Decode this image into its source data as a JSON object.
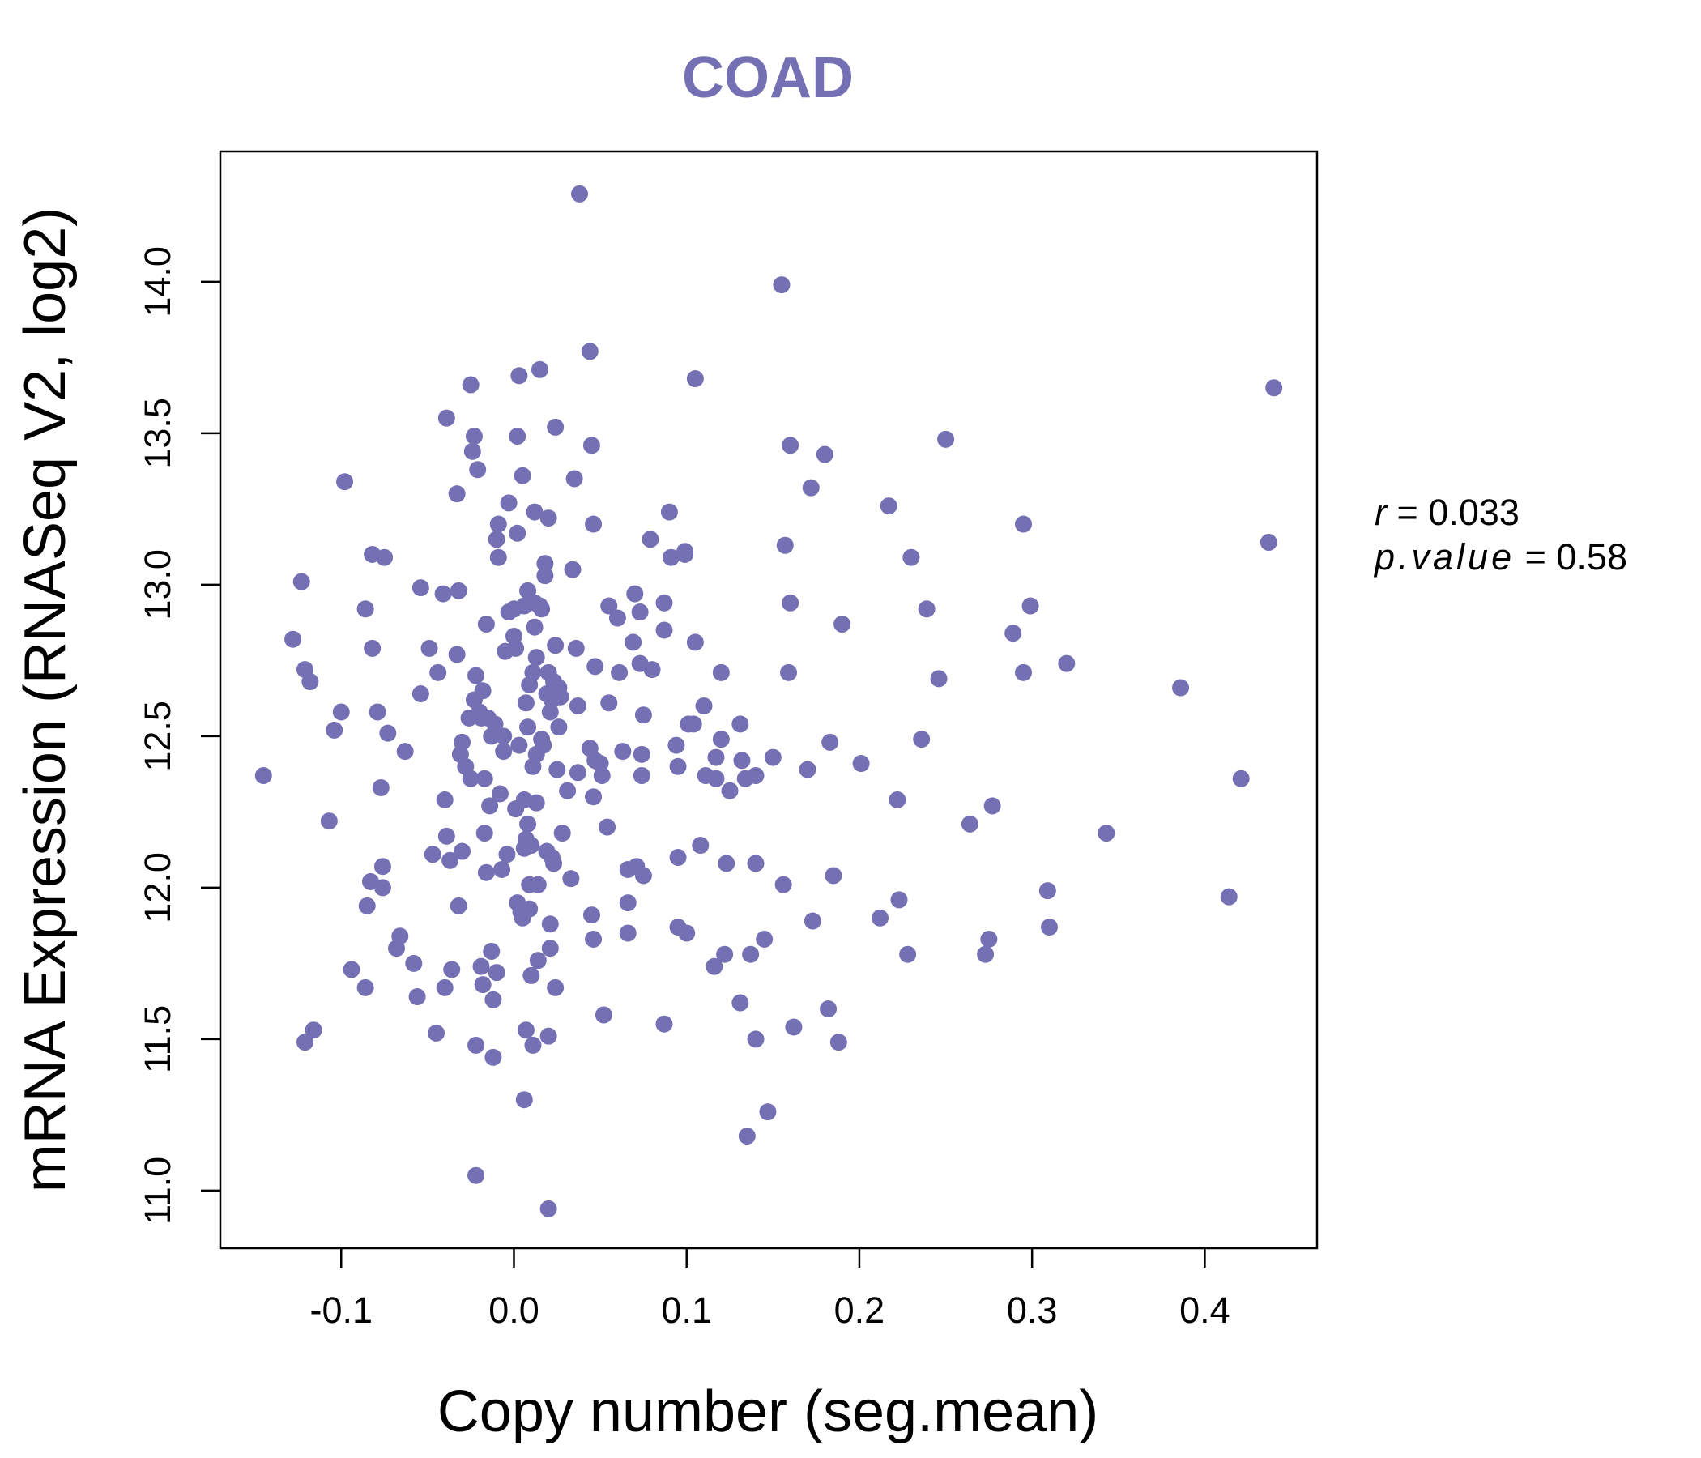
{
  "chart_data": {
    "type": "scatter",
    "title": "COAD",
    "xlabel": "Copy number (seg.mean)",
    "ylabel": "mRNA Expression (RNASeq V2, log2)",
    "xlim": [
      -0.17,
      0.465
    ],
    "ylim": [
      10.81,
      14.43
    ],
    "x_ticks": [
      "-0.1",
      "0.0",
      "0.1",
      "0.2",
      "0.3",
      "0.4"
    ],
    "y_ticks": [
      "11.0",
      "11.5",
      "12.0",
      "12.5",
      "13.0",
      "13.5",
      "14.0"
    ],
    "grid": false,
    "legend": "none",
    "point_color": "#7570B3",
    "stats": {
      "r_label": "r",
      "r_value": "0.033",
      "p_label": "p.value",
      "p_value": "0.58"
    },
    "points": [
      [
        -0.145,
        12.37
      ],
      [
        -0.128,
        12.82
      ],
      [
        -0.123,
        13.01
      ],
      [
        -0.121,
        12.72
      ],
      [
        -0.121,
        11.49
      ],
      [
        -0.118,
        12.68
      ],
      [
        -0.116,
        11.53
      ],
      [
        -0.107,
        12.22
      ],
      [
        -0.104,
        12.52
      ],
      [
        -0.1,
        12.58
      ],
      [
        -0.098,
        13.34
      ],
      [
        -0.094,
        11.73
      ],
      [
        -0.086,
        11.67
      ],
      [
        -0.086,
        12.92
      ],
      [
        -0.085,
        11.94
      ],
      [
        -0.083,
        12.02
      ],
      [
        -0.082,
        12.79
      ],
      [
        -0.082,
        13.1
      ],
      [
        -0.079,
        12.58
      ],
      [
        -0.077,
        12.33
      ],
      [
        -0.076,
        12.07
      ],
      [
        -0.076,
        12.0
      ],
      [
        -0.075,
        13.09
      ],
      [
        -0.073,
        12.51
      ],
      [
        -0.068,
        11.8
      ],
      [
        -0.066,
        11.84
      ],
      [
        -0.063,
        12.45
      ],
      [
        -0.058,
        11.75
      ],
      [
        -0.056,
        11.64
      ],
      [
        -0.054,
        12.64
      ],
      [
        -0.054,
        12.99
      ],
      [
        -0.049,
        12.79
      ],
      [
        -0.047,
        12.11
      ],
      [
        -0.045,
        11.52
      ],
      [
        -0.044,
        12.71
      ],
      [
        -0.041,
        12.97
      ],
      [
        -0.04,
        11.67
      ],
      [
        -0.04,
        12.29
      ],
      [
        -0.039,
        12.17
      ],
      [
        -0.039,
        13.55
      ],
      [
        -0.037,
        12.09
      ],
      [
        -0.036,
        11.73
      ],
      [
        -0.033,
        13.3
      ],
      [
        -0.033,
        12.77
      ],
      [
        -0.032,
        12.98
      ],
      [
        -0.032,
        11.94
      ],
      [
        -0.031,
        12.44
      ],
      [
        -0.03,
        12.48
      ],
      [
        -0.03,
        12.12
      ],
      [
        -0.028,
        12.4
      ],
      [
        -0.026,
        12.56
      ],
      [
        -0.025,
        12.36
      ],
      [
        -0.025,
        13.66
      ],
      [
        -0.024,
        13.44
      ],
      [
        -0.023,
        13.49
      ],
      [
        -0.023,
        12.62
      ],
      [
        -0.022,
        12.7
      ],
      [
        -0.022,
        11.48
      ],
      [
        -0.022,
        11.05
      ],
      [
        -0.021,
        13.38
      ],
      [
        -0.02,
        12.58
      ],
      [
        -0.019,
        11.74
      ],
      [
        -0.019,
        12.56
      ],
      [
        -0.018,
        11.68
      ],
      [
        -0.018,
        12.65
      ],
      [
        -0.017,
        12.36
      ],
      [
        -0.017,
        12.18
      ],
      [
        -0.016,
        12.87
      ],
      [
        -0.016,
        12.05
      ],
      [
        -0.015,
        12.56
      ],
      [
        -0.014,
        12.27
      ],
      [
        -0.013,
        12.5
      ],
      [
        -0.013,
        11.79
      ],
      [
        -0.012,
        11.44
      ],
      [
        -0.012,
        11.63
      ],
      [
        -0.011,
        12.54
      ],
      [
        -0.01,
        13.15
      ],
      [
        -0.01,
        11.72
      ],
      [
        -0.009,
        13.2
      ],
      [
        -0.009,
        13.09
      ],
      [
        -0.008,
        12.31
      ],
      [
        -0.007,
        12.06
      ],
      [
        -0.006,
        12.45
      ],
      [
        -0.006,
        12.5
      ],
      [
        -0.005,
        12.78
      ],
      [
        -0.004,
        12.11
      ],
      [
        -0.003,
        13.27
      ],
      [
        -0.003,
        12.91
      ],
      [
        0.0,
        12.92
      ],
      [
        0.0,
        12.83
      ],
      [
        0.001,
        12.79
      ],
      [
        0.001,
        12.26
      ],
      [
        0.002,
        13.17
      ],
      [
        0.002,
        11.95
      ],
      [
        0.002,
        13.49
      ],
      [
        0.003,
        13.69
      ],
      [
        0.003,
        12.47
      ],
      [
        0.004,
        11.92
      ],
      [
        0.005,
        11.9
      ],
      [
        0.005,
        13.36
      ],
      [
        0.006,
        12.29
      ],
      [
        0.006,
        12.93
      ],
      [
        0.006,
        12.13
      ],
      [
        0.006,
        11.3
      ],
      [
        0.007,
        11.53
      ],
      [
        0.007,
        12.61
      ],
      [
        0.007,
        12.16
      ],
      [
        0.008,
        12.98
      ],
      [
        0.008,
        12.53
      ],
      [
        0.008,
        12.21
      ],
      [
        0.009,
        11.93
      ],
      [
        0.009,
        12.01
      ],
      [
        0.009,
        12.67
      ],
      [
        0.01,
        11.71
      ],
      [
        0.01,
        12.14
      ],
      [
        0.011,
        12.4
      ],
      [
        0.011,
        12.71
      ],
      [
        0.011,
        11.48
      ],
      [
        0.012,
        12.94
      ],
      [
        0.012,
        12.86
      ],
      [
        0.012,
        13.24
      ],
      [
        0.013,
        12.28
      ],
      [
        0.013,
        12.76
      ],
      [
        0.013,
        12.44
      ],
      [
        0.014,
        12.01
      ],
      [
        0.014,
        11.76
      ],
      [
        0.015,
        12.93
      ],
      [
        0.015,
        13.71
      ],
      [
        0.016,
        12.49
      ],
      [
        0.016,
        12.92
      ],
      [
        0.017,
        12.47
      ],
      [
        0.018,
        13.03
      ],
      [
        0.018,
        13.07
      ],
      [
        0.019,
        12.12
      ],
      [
        0.019,
        12.64
      ],
      [
        0.02,
        11.51
      ],
      [
        0.02,
        10.94
      ],
      [
        0.02,
        12.71
      ],
      [
        0.02,
        13.22
      ],
      [
        0.021,
        11.8
      ],
      [
        0.021,
        12.58
      ],
      [
        0.021,
        11.88
      ],
      [
        0.022,
        12.1
      ],
      [
        0.022,
        12.62
      ],
      [
        0.023,
        12.08
      ],
      [
        0.023,
        12.68
      ],
      [
        0.024,
        11.67
      ],
      [
        0.024,
        13.52
      ],
      [
        0.024,
        12.8
      ],
      [
        0.025,
        12.39
      ],
      [
        0.026,
        12.53
      ],
      [
        0.026,
        12.66
      ],
      [
        0.027,
        12.63
      ],
      [
        0.028,
        12.18
      ],
      [
        0.031,
        12.32
      ],
      [
        0.033,
        12.03
      ],
      [
        0.034,
        13.05
      ],
      [
        0.035,
        13.35
      ],
      [
        0.036,
        12.79
      ],
      [
        0.037,
        12.6
      ],
      [
        0.037,
        12.38
      ],
      [
        0.038,
        14.29
      ],
      [
        0.044,
        13.77
      ],
      [
        0.044,
        12.46
      ],
      [
        0.045,
        13.46
      ],
      [
        0.045,
        11.91
      ],
      [
        0.046,
        13.2
      ],
      [
        0.046,
        11.83
      ],
      [
        0.046,
        12.3
      ],
      [
        0.047,
        12.42
      ],
      [
        0.047,
        12.73
      ],
      [
        0.05,
        12.41
      ],
      [
        0.051,
        12.37
      ],
      [
        0.052,
        11.58
      ],
      [
        0.054,
        12.2
      ],
      [
        0.055,
        12.61
      ],
      [
        0.055,
        12.93
      ],
      [
        0.06,
        12.89
      ],
      [
        0.061,
        12.71
      ],
      [
        0.063,
        12.45
      ],
      [
        0.066,
        12.06
      ],
      [
        0.066,
        11.95
      ],
      [
        0.066,
        11.85
      ],
      [
        0.069,
        12.81
      ],
      [
        0.07,
        12.97
      ],
      [
        0.071,
        12.07
      ],
      [
        0.073,
        12.74
      ],
      [
        0.073,
        12.91
      ],
      [
        0.074,
        12.44
      ],
      [
        0.074,
        12.37
      ],
      [
        0.075,
        12.04
      ],
      [
        0.075,
        12.57
      ],
      [
        0.079,
        13.15
      ],
      [
        0.08,
        12.72
      ],
      [
        0.087,
        11.55
      ],
      [
        0.087,
        12.85
      ],
      [
        0.087,
        12.94
      ],
      [
        0.09,
        13.24
      ],
      [
        0.091,
        13.09
      ],
      [
        0.094,
        12.47
      ],
      [
        0.095,
        11.87
      ],
      [
        0.095,
        12.1
      ],
      [
        0.095,
        12.4
      ],
      [
        0.099,
        13.11
      ],
      [
        0.099,
        13.1
      ],
      [
        0.1,
        11.85
      ],
      [
        0.101,
        12.54
      ],
      [
        0.104,
        12.54
      ],
      [
        0.105,
        12.81
      ],
      [
        0.105,
        13.68
      ],
      [
        0.108,
        12.14
      ],
      [
        0.11,
        12.6
      ],
      [
        0.111,
        12.37
      ],
      [
        0.116,
        11.74
      ],
      [
        0.117,
        12.43
      ],
      [
        0.117,
        12.36
      ],
      [
        0.12,
        12.71
      ],
      [
        0.12,
        12.49
      ],
      [
        0.122,
        11.78
      ],
      [
        0.123,
        12.08
      ],
      [
        0.125,
        12.32
      ],
      [
        0.131,
        11.62
      ],
      [
        0.131,
        12.54
      ],
      [
        0.132,
        12.42
      ],
      [
        0.134,
        12.36
      ],
      [
        0.135,
        11.18
      ],
      [
        0.137,
        11.78
      ],
      [
        0.14,
        12.37
      ],
      [
        0.14,
        11.5
      ],
      [
        0.14,
        12.08
      ],
      [
        0.145,
        11.83
      ],
      [
        0.147,
        11.26
      ],
      [
        0.15,
        12.43
      ],
      [
        0.155,
        13.99
      ],
      [
        0.156,
        12.01
      ],
      [
        0.157,
        13.13
      ],
      [
        0.159,
        12.71
      ],
      [
        0.16,
        12.94
      ],
      [
        0.16,
        13.46
      ],
      [
        0.162,
        11.54
      ],
      [
        0.17,
        12.39
      ],
      [
        0.172,
        13.32
      ],
      [
        0.173,
        11.89
      ],
      [
        0.18,
        13.43
      ],
      [
        0.182,
        11.6
      ],
      [
        0.183,
        12.48
      ],
      [
        0.185,
        12.04
      ],
      [
        0.188,
        11.49
      ],
      [
        0.19,
        12.87
      ],
      [
        0.201,
        12.41
      ],
      [
        0.212,
        11.9
      ],
      [
        0.217,
        13.26
      ],
      [
        0.222,
        12.29
      ],
      [
        0.223,
        11.96
      ],
      [
        0.228,
        11.78
      ],
      [
        0.23,
        13.09
      ],
      [
        0.236,
        12.49
      ],
      [
        0.239,
        12.92
      ],
      [
        0.246,
        12.69
      ],
      [
        0.25,
        13.48
      ],
      [
        0.264,
        12.21
      ],
      [
        0.273,
        11.78
      ],
      [
        0.275,
        11.83
      ],
      [
        0.277,
        12.27
      ],
      [
        0.289,
        12.84
      ],
      [
        0.295,
        12.71
      ],
      [
        0.295,
        13.2
      ],
      [
        0.299,
        12.93
      ],
      [
        0.309,
        11.99
      ],
      [
        0.31,
        11.87
      ],
      [
        0.32,
        12.74
      ],
      [
        0.343,
        12.18
      ],
      [
        0.386,
        12.66
      ],
      [
        0.414,
        11.97
      ],
      [
        0.421,
        12.36
      ],
      [
        0.437,
        13.14
      ],
      [
        0.44,
        13.65
      ]
    ]
  }
}
